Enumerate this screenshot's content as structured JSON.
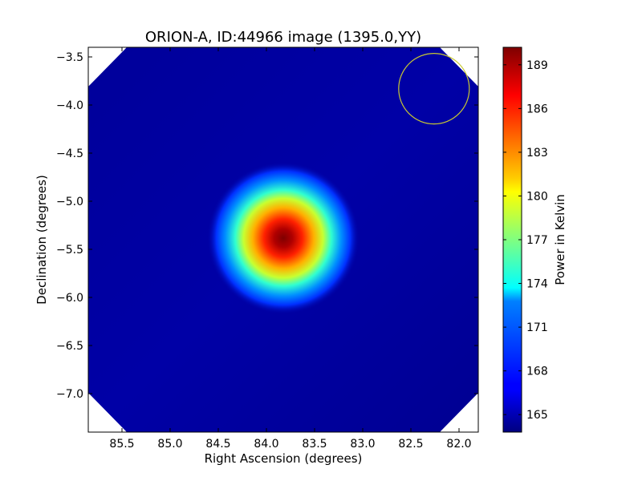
{
  "chart_data": {
    "type": "heatmap",
    "title": "ORION-A, ID:44966 image (1395.0,YY)",
    "xlabel": "Right Ascension (degrees)",
    "ylabel": "Declination (degrees)",
    "xlim": [
      85.85,
      81.8
    ],
    "ylim": [
      -7.4,
      -3.4
    ],
    "x_ticks": [
      85.5,
      85.0,
      84.5,
      84.0,
      83.5,
      83.0,
      82.5,
      82.0
    ],
    "x_tick_labels": [
      "85.5",
      "85.0",
      "84.5",
      "84.0",
      "83.5",
      "83.0",
      "82.5",
      "82.0"
    ],
    "y_ticks": [
      -3.5,
      -4.0,
      -4.5,
      -5.0,
      -5.5,
      -6.0,
      -6.5,
      -7.0
    ],
    "y_tick_labels": [
      "−3.5",
      "−4.0",
      "−4.5",
      "−5.0",
      "−5.5",
      "−6.0",
      "−6.5",
      "−7.0"
    ],
    "colormap": "jet",
    "colorbar": {
      "label": "Power in Kelvin",
      "range": [
        163.8,
        190.2
      ],
      "ticks": [
        165,
        168,
        171,
        174,
        177,
        180,
        183,
        186,
        189
      ],
      "tick_labels": [
        "165",
        "168",
        "171",
        "174",
        "177",
        "180",
        "183",
        "186",
        "189"
      ]
    },
    "source": {
      "ra": 83.83,
      "dec": -5.38,
      "peak": 190.0,
      "background": 164.3
    },
    "beam_circle": {
      "ra": 82.26,
      "dec": -3.83,
      "color": "#c8c832"
    },
    "grid": false
  }
}
